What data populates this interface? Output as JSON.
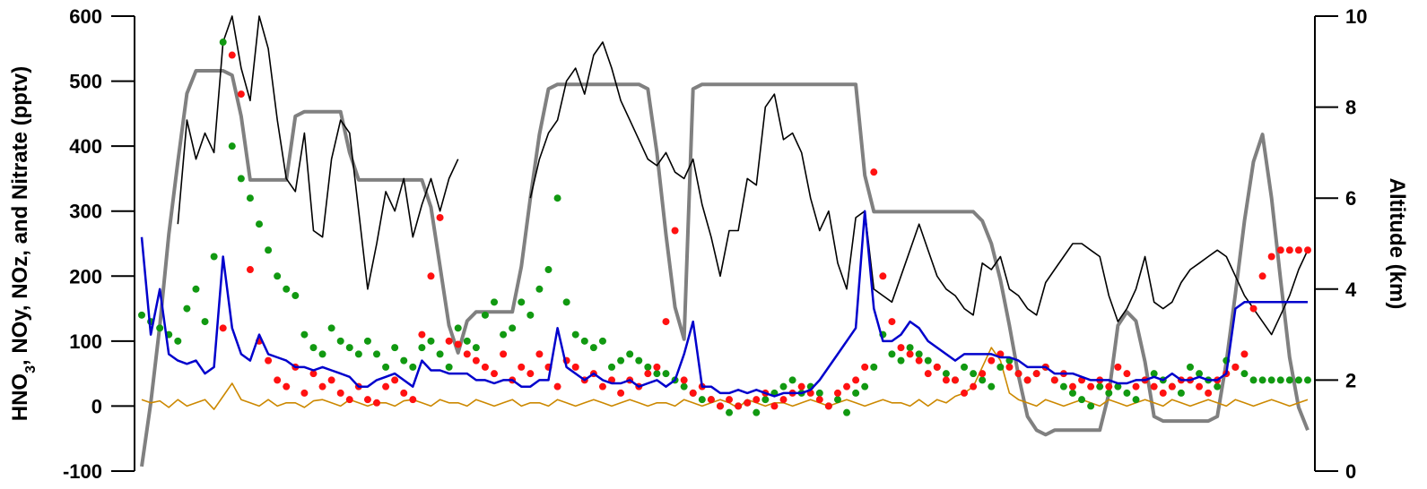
{
  "chart_data": {
    "type": "line",
    "title": "",
    "xlabel": "",
    "ylabel_left": "HNO3, NOy, NOz, and Nitrate (pptv)",
    "ylabel_left_parts": {
      "pre": "HNO",
      "sub": "3",
      "post": ", NOy, NOz, and Nitrate (pptv)"
    },
    "ylabel_right": "Altitude (km)",
    "ylim_left": [
      -100,
      600
    ],
    "ylim_right": [
      0,
      10
    ],
    "yticks_left": [
      "600",
      "500",
      "400",
      "300",
      "200",
      "100",
      "0",
      "-100"
    ],
    "yticks_right": [
      "10",
      "8",
      "6",
      "4",
      "2",
      "0"
    ],
    "grid": false,
    "legend": "none",
    "x": [
      0,
      10,
      20,
      30,
      40,
      50,
      60,
      70,
      80,
      90,
      100,
      110,
      120,
      130,
      140,
      150,
      160,
      170,
      180,
      190,
      200,
      210,
      220,
      230,
      240,
      250,
      260,
      270,
      280,
      290,
      300,
      310,
      320,
      330,
      340,
      350,
      360,
      370,
      380,
      390,
      400,
      410,
      420,
      430,
      440,
      450,
      460,
      470,
      480,
      490,
      500,
      510,
      520,
      530,
      540,
      550,
      560,
      570,
      580,
      590,
      600,
      610,
      620,
      630,
      640,
      650,
      660,
      670,
      680,
      690,
      700,
      710,
      720,
      730,
      740,
      750,
      760,
      770,
      780,
      790,
      800,
      810,
      820,
      830,
      840,
      850,
      860,
      870,
      880,
      890,
      900,
      910,
      920,
      930,
      940,
      950,
      960,
      970,
      980,
      990,
      1000,
      1010,
      1020,
      1030,
      1040,
      1050,
      1060,
      1070,
      1080,
      1090,
      1100,
      1110,
      1120,
      1130,
      1140,
      1150,
      1160,
      1170,
      1180,
      1190,
      1200,
      1210,
      1220,
      1230,
      1240,
      1250,
      1260,
      1270,
      1280,
      1290
    ],
    "series": [
      {
        "name": "",
        "axis": "right",
        "color": "#808080",
        "values": [
          0.1,
          1.5,
          3.2,
          5.2,
          6.8,
          8.3,
          8.8,
          8.8,
          8.8,
          8.8,
          8.7,
          7.8,
          6.4,
          6.4,
          6.4,
          6.4,
          6.4,
          7.8,
          7.9,
          7.9,
          7.9,
          7.9,
          7.9,
          7.0,
          6.4,
          6.4,
          6.4,
          6.4,
          6.4,
          6.4,
          6.4,
          6.4,
          5.8,
          4.5,
          3.2,
          2.6,
          3.3,
          3.5,
          3.5,
          3.5,
          3.5,
          3.5,
          4.5,
          6.0,
          7.4,
          8.4,
          8.5,
          8.5,
          8.5,
          8.5,
          8.5,
          8.5,
          8.5,
          8.5,
          8.5,
          8.5,
          8.4,
          7.0,
          5.2,
          3.6,
          2.9,
          8.4,
          8.5,
          8.5,
          8.5,
          8.5,
          8.5,
          8.5,
          8.5,
          8.5,
          8.5,
          8.5,
          8.5,
          8.5,
          8.5,
          8.5,
          8.5,
          8.5,
          8.5,
          8.5,
          6.5,
          5.7,
          5.7,
          5.7,
          5.7,
          5.7,
          5.7,
          5.7,
          5.7,
          5.7,
          5.7,
          5.7,
          5.7,
          5.5,
          5.0,
          4.2,
          3.2,
          2.1,
          1.2,
          0.9,
          0.8,
          0.9,
          0.9,
          0.9,
          0.9,
          0.9,
          0.9,
          1.7,
          3.2,
          3.5,
          3.3,
          2.4,
          1.2,
          1.1,
          1.1,
          1.1,
          1.1,
          1.1,
          1.1,
          1.2,
          2.4,
          3.9,
          5.5,
          6.8,
          7.4,
          6.0,
          4.2,
          2.5,
          1.4,
          0.9
        ]
      },
      {
        "name": "",
        "axis": "left",
        "color": "#000000",
        "values": [
          null,
          null,
          null,
          null,
          280,
          440,
          380,
          420,
          390,
          560,
          600,
          520,
          470,
          600,
          550,
          440,
          350,
          330,
          420,
          270,
          260,
          380,
          440,
          420,
          300,
          180,
          250,
          330,
          300,
          350,
          260,
          310,
          350,
          300,
          350,
          380,
          null,
          null,
          null,
          null,
          null,
          null,
          null,
          320,
          380,
          420,
          440,
          500,
          520,
          480,
          540,
          560,
          520,
          470,
          440,
          410,
          380,
          370,
          390,
          360,
          350,
          380,
          310,
          260,
          200,
          270,
          270,
          350,
          340,
          460,
          480,
          410,
          420,
          390,
          320,
          270,
          300,
          220,
          180,
          290,
          300,
          180,
          170,
          160,
          200,
          240,
          280,
          240,
          200,
          180,
          170,
          150,
          140,
          220,
          210,
          230,
          180,
          170,
          150,
          140,
          190,
          210,
          230,
          250,
          250,
          240,
          230,
          170,
          130,
          150,
          180,
          230,
          160,
          150,
          160,
          190,
          210,
          220,
          230,
          240,
          230,
          200,
          170,
          150,
          130,
          110,
          140,
          170,
          210,
          240
        ]
      },
      {
        "name": "",
        "axis": "left",
        "color": "#0000cc",
        "values": [
          260,
          110,
          180,
          80,
          70,
          65,
          70,
          50,
          60,
          230,
          120,
          80,
          70,
          110,
          80,
          75,
          70,
          60,
          60,
          55,
          60,
          55,
          50,
          45,
          30,
          30,
          40,
          45,
          50,
          40,
          30,
          70,
          55,
          55,
          50,
          50,
          50,
          40,
          40,
          35,
          40,
          40,
          30,
          30,
          40,
          40,
          120,
          60,
          50,
          40,
          50,
          40,
          35,
          35,
          40,
          30,
          35,
          40,
          30,
          40,
          80,
          130,
          30,
          30,
          20,
          20,
          25,
          20,
          25,
          20,
          15,
          20,
          20,
          20,
          25,
          40,
          60,
          80,
          100,
          120,
          300,
          150,
          100,
          100,
          110,
          130,
          120,
          100,
          90,
          80,
          70,
          80,
          80,
          80,
          80,
          75,
          75,
          70,
          60,
          60,
          60,
          50,
          50,
          50,
          45,
          40,
          40,
          40,
          35,
          35,
          40,
          40,
          45,
          40,
          50,
          40,
          40,
          45,
          40,
          40,
          50,
          150,
          160,
          160,
          160,
          160,
          160,
          160,
          160,
          160
        ],
        "note_visible": "blue curve fills the main trace behind dots"
      },
      {
        "name": "",
        "axis": "left",
        "color": "#cc8800",
        "values": [
          10,
          5,
          8,
          -2,
          10,
          0,
          5,
          10,
          -5,
          15,
          35,
          10,
          5,
          0,
          10,
          0,
          5,
          5,
          -2,
          8,
          10,
          5,
          0,
          10,
          5,
          0,
          5,
          5,
          0,
          8,
          10,
          5,
          0,
          10,
          5,
          5,
          0,
          10,
          5,
          0,
          5,
          10,
          0,
          5,
          5,
          0,
          10,
          5,
          0,
          5,
          10,
          5,
          0,
          5,
          10,
          5,
          0,
          5,
          5,
          0,
          10,
          5,
          0,
          5,
          10,
          5,
          -3,
          10,
          5,
          0,
          5,
          5,
          0,
          5,
          10,
          5,
          0,
          5,
          10,
          5,
          0,
          5,
          10,
          5,
          5,
          0,
          10,
          0,
          10,
          5,
          15,
          20,
          30,
          60,
          90,
          70,
          20,
          10,
          5,
          0,
          10,
          5,
          0,
          5,
          10,
          5,
          0,
          10,
          5,
          0,
          5,
          10,
          5,
          0,
          10,
          5,
          0,
          5,
          10,
          5,
          0,
          10,
          5,
          0,
          5,
          10,
          5,
          0,
          5,
          10
        ]
      },
      {
        "name": "",
        "axis": "left",
        "color": "#ff1111",
        "type": "scatter",
        "values": [
          null,
          null,
          null,
          null,
          null,
          null,
          null,
          null,
          null,
          120,
          540,
          480,
          210,
          100,
          70,
          40,
          30,
          60,
          20,
          50,
          30,
          40,
          20,
          10,
          30,
          10,
          5,
          30,
          40,
          20,
          10,
          110,
          200,
          290,
          100,
          95,
          80,
          70,
          60,
          50,
          80,
          40,
          60,
          50,
          80,
          60,
          30,
          70,
          60,
          40,
          50,
          30,
          40,
          20,
          40,
          30,
          50,
          60,
          130,
          270,
          40,
          20,
          30,
          10,
          0,
          10,
          0,
          5,
          10,
          20,
          0,
          10,
          20,
          30,
          20,
          10,
          0,
          20,
          30,
          40,
          60,
          360,
          200,
          130,
          90,
          80,
          70,
          50,
          60,
          40,
          40,
          20,
          30,
          50,
          70,
          80,
          60,
          50,
          40,
          50,
          60,
          40,
          50,
          30,
          40,
          30,
          40,
          30,
          60,
          50,
          30,
          40,
          30,
          20,
          30,
          40,
          40,
          30,
          20,
          40,
          50,
          60,
          80,
          150,
          200,
          230,
          240,
          240,
          240,
          240
        ]
      },
      {
        "name": "",
        "axis": "left",
        "color": "#119911",
        "type": "scatter",
        "values": [
          140,
          130,
          120,
          110,
          100,
          150,
          180,
          130,
          230,
          560,
          400,
          350,
          320,
          280,
          240,
          200,
          180,
          170,
          110,
          90,
          80,
          120,
          100,
          90,
          80,
          100,
          80,
          60,
          90,
          70,
          60,
          90,
          100,
          80,
          60,
          120,
          100,
          90,
          140,
          160,
          110,
          120,
          160,
          140,
          180,
          210,
          320,
          160,
          110,
          100,
          90,
          100,
          60,
          70,
          80,
          70,
          60,
          50,
          50,
          40,
          30,
          20,
          10,
          10,
          0,
          -10,
          0,
          5,
          -10,
          10,
          20,
          30,
          40,
          20,
          30,
          20,
          0,
          10,
          -10,
          20,
          30,
          60,
          110,
          80,
          70,
          90,
          80,
          70,
          60,
          50,
          40,
          60,
          50,
          40,
          30,
          60,
          70,
          50,
          40,
          50,
          60,
          40,
          30,
          20,
          10,
          0,
          30,
          20,
          30,
          20,
          10,
          40,
          50,
          40,
          30,
          20,
          60,
          50,
          40,
          30,
          70,
          60,
          50,
          40,
          40,
          40,
          40,
          40,
          40,
          40
        ]
      }
    ]
  }
}
